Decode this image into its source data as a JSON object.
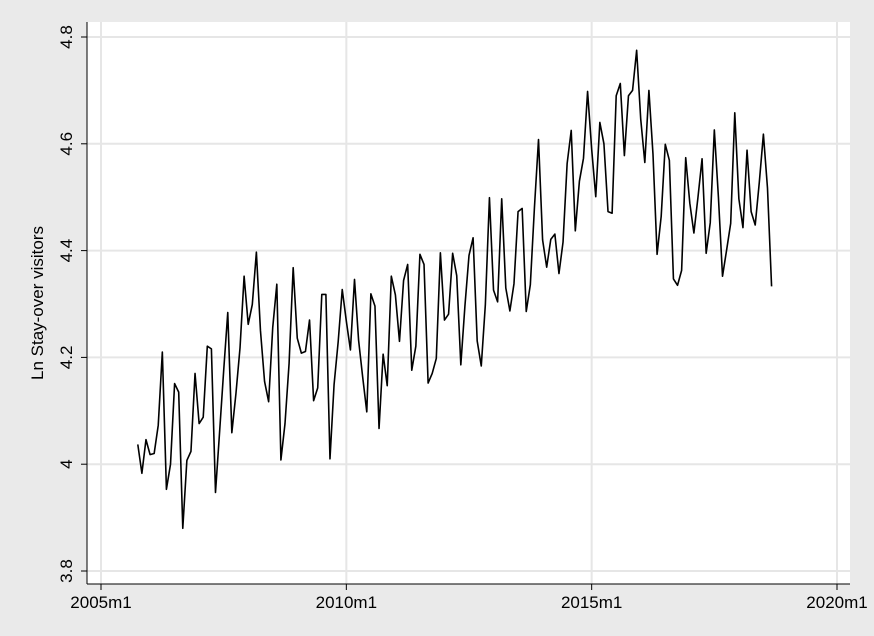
{
  "chart_data": {
    "type": "line",
    "title": "",
    "xlabel": "",
    "ylabel": "Ln Stay-over visitors",
    "x_unit": "month",
    "x_start": "2005m10",
    "xlim": [
      "2005m1",
      "2020m1"
    ],
    "ylim": [
      3.8,
      4.8
    ],
    "x_ticks": [
      "2005m1",
      "2010m1",
      "2015m1",
      "2020m1"
    ],
    "y_ticks": [
      "3.8",
      "4",
      "4.2",
      "4.4",
      "4.6",
      "4.8"
    ],
    "grid": true,
    "legend": "none",
    "line_color": "#000000",
    "plot_background": "#ffffff",
    "page_background": "#eaeaea",
    "series": [
      {
        "values": [
          4.037,
          3.983,
          4.046,
          4.018,
          4.02,
          4.073,
          4.21,
          3.953,
          4.0,
          4.151,
          4.135,
          3.88,
          4.007,
          4.024,
          4.17,
          4.076,
          4.088,
          4.221,
          4.216,
          3.947,
          4.06,
          4.175,
          4.284,
          4.059,
          4.132,
          4.218,
          4.352,
          4.262,
          4.299,
          4.397,
          4.25,
          4.155,
          4.117,
          4.256,
          4.337,
          4.008,
          4.076,
          4.189,
          4.368,
          4.236,
          4.208,
          4.211,
          4.27,
          4.119,
          4.143,
          4.318,
          4.318,
          4.01,
          4.149,
          4.229,
          4.327,
          4.268,
          4.214,
          4.346,
          4.232,
          4.163,
          4.098,
          4.319,
          4.296,
          4.067,
          4.206,
          4.147,
          4.352,
          4.317,
          4.23,
          4.344,
          4.374,
          4.176,
          4.221,
          4.393,
          4.374,
          4.152,
          4.17,
          4.198,
          4.396,
          4.27,
          4.281,
          4.395,
          4.353,
          4.186,
          4.296,
          4.391,
          4.424,
          4.231,
          4.184,
          4.299,
          4.499,
          4.326,
          4.304,
          4.497,
          4.33,
          4.287,
          4.338,
          4.473,
          4.479,
          4.286,
          4.336,
          4.48,
          4.608,
          4.42,
          4.369,
          4.421,
          4.431,
          4.357,
          4.416,
          4.563,
          4.625,
          4.437,
          4.53,
          4.573,
          4.698,
          4.59,
          4.501,
          4.64,
          4.6,
          4.473,
          4.47,
          4.69,
          4.713,
          4.578,
          4.69,
          4.7,
          4.775,
          4.646,
          4.565,
          4.7,
          4.58,
          4.393,
          4.464,
          4.599,
          4.569,
          4.347,
          4.335,
          4.363,
          4.574,
          4.489,
          4.433,
          4.5,
          4.572,
          4.395,
          4.452,
          4.626,
          4.5,
          4.352,
          4.401,
          4.451,
          4.658,
          4.497,
          4.443,
          4.588,
          4.473,
          4.448,
          4.528,
          4.618,
          4.517,
          4.333
        ]
      }
    ]
  }
}
